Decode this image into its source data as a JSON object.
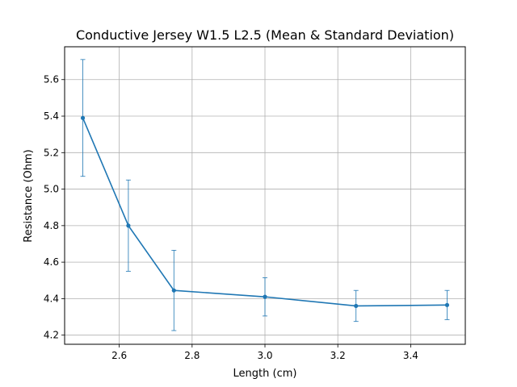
{
  "chart_data": {
    "type": "line",
    "title": "Conductive Jersey W1.5 L2.5 (Mean & Standard Deviation)",
    "xlabel": "Length (cm)",
    "ylabel": "Resistance (Ohm)",
    "xlim": [
      2.45,
      3.55
    ],
    "ylim": [
      4.15,
      5.78
    ],
    "xticks": [
      2.6,
      2.8,
      3.0,
      3.2,
      3.4
    ],
    "xtick_labels": [
      "2.6",
      "2.8",
      "3.0",
      "3.2",
      "3.4"
    ],
    "yticks": [
      4.2,
      4.4,
      4.6,
      4.8,
      5.0,
      5.2,
      5.4,
      5.6
    ],
    "ytick_labels": [
      "4.2",
      "4.4",
      "4.6",
      "4.8",
      "5.0",
      "5.2",
      "5.4",
      "5.6"
    ],
    "grid": true,
    "series": [
      {
        "color": "#1f77b4",
        "x": [
          2.5,
          2.625,
          2.75,
          3.0,
          3.25,
          3.5
        ],
        "y": [
          5.39,
          4.8,
          4.445,
          4.41,
          4.36,
          4.365
        ],
        "yerr": [
          0.32,
          0.25,
          0.22,
          0.105,
          0.085,
          0.08
        ]
      }
    ]
  }
}
